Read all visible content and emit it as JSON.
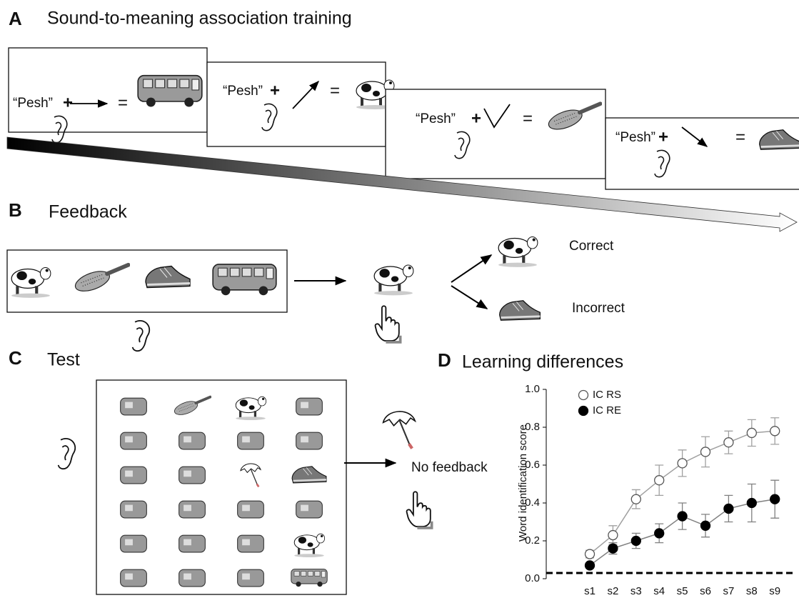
{
  "panel_a": {
    "letter": "A",
    "title": "Sound-to-meaning association training",
    "frames": [
      {
        "word": "“Pesh”",
        "plus": "+",
        "equals": "="
      },
      {
        "word": "“Pesh”",
        "plus": "+",
        "equals": "="
      },
      {
        "word": "“Pesh”",
        "plus": "+",
        "equals": "="
      },
      {
        "word": "“Pesh”",
        "plus": "+",
        "equals": "="
      }
    ]
  },
  "panel_b": {
    "letter": "B",
    "title": "Feedback",
    "outcomes": [
      "Correct",
      "Incorrect"
    ]
  },
  "panel_c": {
    "letter": "C",
    "title": "Test",
    "note": "No feedback"
  },
  "chart_data": {
    "type": "line",
    "panel_label": "D",
    "title": "Learning differences",
    "ylabel": "Word identification score",
    "categories": [
      "s1",
      "s2",
      "s3",
      "s4",
      "s5",
      "s6",
      "s7",
      "s8",
      "s9"
    ],
    "series": [
      {
        "name": "IC RS",
        "color": "#a0a0a0",
        "marker": "open",
        "values": [
          0.13,
          0.23,
          0.42,
          0.52,
          0.61,
          0.67,
          0.72,
          0.77,
          0.78
        ],
        "errors": [
          0.02,
          0.05,
          0.05,
          0.08,
          0.07,
          0.08,
          0.06,
          0.07,
          0.07
        ]
      },
      {
        "name": "IC RE",
        "color": "#808080",
        "marker": "filled",
        "values": [
          0.07,
          0.16,
          0.2,
          0.24,
          0.33,
          0.28,
          0.37,
          0.4,
          0.42
        ],
        "errors": [
          0.01,
          0.03,
          0.04,
          0.05,
          0.07,
          0.06,
          0.07,
          0.1,
          0.1
        ]
      }
    ],
    "ylim": [
      0,
      1
    ],
    "yticks": [
      {
        "value": 0,
        "label": "0.0"
      },
      0.2,
      0.4,
      0.6,
      0.8,
      {
        "value": 1,
        "label": "1.0"
      }
    ],
    "chance_level": 0.03
  }
}
